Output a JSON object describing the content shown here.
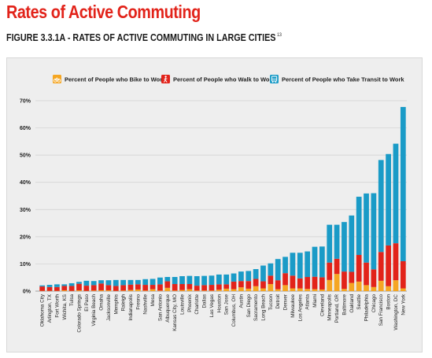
{
  "page": {
    "title": "Rates of Active Commuting",
    "figure_caption": "FIGURE 3.3.1A - RATES OF ACTIVE COMMUTING IN LARGE CITIES",
    "footnote_ref": "13"
  },
  "colors": {
    "bike": "#f5a623",
    "walk": "#e2231a",
    "transit": "#1a9bc7"
  },
  "chart_data": {
    "type": "bar",
    "stacked": true,
    "title": "",
    "xlabel": "",
    "ylabel": "",
    "ylim": [
      0,
      70
    ],
    "yticks": [
      "0%",
      "10%",
      "20%",
      "30%",
      "40%",
      "50%",
      "60%",
      "70%"
    ],
    "grid": true,
    "legend_position": "top",
    "categories": [
      "Oklahoma City",
      "Arlington, TX",
      "Fort Worth",
      "Wichita, KS",
      "Tulsa",
      "Colorado Springs",
      "El Paso",
      "Virginia Beach",
      "Omaha",
      "Jacksonville",
      "Memphis",
      "Raleigh",
      "Indianapolis",
      "Fresno",
      "Nashville",
      "Mesa",
      "San Antonio",
      "Albuquerque",
      "Kansas City, MO",
      "Louisville",
      "Phoenix",
      "Charlotte",
      "Dallas",
      "Las Vegas",
      "Houston",
      "San Jose",
      "Columbus, OH",
      "Austin",
      "San Diego",
      "Sacramento",
      "Long Beach",
      "Tucson",
      "Detroit",
      "Denver",
      "Milwaukee",
      "Los Angeles",
      "Atlanta",
      "Miami",
      "Cleveland",
      "Minneapolis",
      "Portland, OR",
      "Baltimore",
      "Oakland",
      "Seattle",
      "Philadelphia",
      "Chicago",
      "San Francisco",
      "Boston",
      "Washington, DC",
      "New York"
    ],
    "series": [
      {
        "name": "Percent of People who Bike to Work",
        "values": [
          0.1,
          0.1,
          0.1,
          0.3,
          0.1,
          0.3,
          0.1,
          0.2,
          0.3,
          0.3,
          0.1,
          0.2,
          0.4,
          0.6,
          0.2,
          0.7,
          0.2,
          1.2,
          0.2,
          0.4,
          0.7,
          0.2,
          0.2,
          0.2,
          0.5,
          0.9,
          0.7,
          1.4,
          0.9,
          1.8,
          1.0,
          2.6,
          0.7,
          2.2,
          1.0,
          1.0,
          0.8,
          0.7,
          0.6,
          4.1,
          6.3,
          0.8,
          3.0,
          3.5,
          2.2,
          1.5,
          3.8,
          1.8,
          4.0,
          1.0
        ]
      },
      {
        "name": "Percent of People who Walk to Work",
        "values": [
          1.6,
          1.4,
          1.4,
          1.6,
          1.8,
          2.4,
          1.9,
          2.0,
          2.5,
          1.9,
          1.8,
          2.0,
          2.0,
          1.9,
          2.1,
          1.6,
          2.3,
          2.4,
          2.4,
          2.2,
          1.9,
          1.8,
          2.0,
          2.1,
          2.0,
          1.6,
          2.8,
          2.3,
          2.8,
          2.7,
          2.6,
          3.1,
          3.3,
          4.4,
          4.7,
          3.7,
          4.4,
          4.6,
          4.5,
          6.4,
          5.6,
          6.4,
          4.1,
          9.8,
          8.3,
          6.5,
          10.6,
          15.0,
          13.6,
          10.0
        ]
      },
      {
        "name": "Percent of People who Take Transit to Work",
        "values": [
          0.4,
          0.8,
          1.0,
          0.6,
          1.0,
          0.7,
          1.8,
          1.5,
          1.2,
          1.8,
          2.2,
          1.9,
          1.7,
          1.6,
          2.1,
          2.2,
          2.5,
          1.6,
          2.6,
          2.9,
          3.0,
          3.5,
          3.4,
          3.4,
          3.6,
          3.6,
          3.0,
          3.5,
          3.7,
          3.6,
          5.8,
          4.5,
          7.8,
          6.0,
          8.4,
          9.4,
          9.4,
          11.0,
          11.3,
          13.9,
          12.5,
          18.2,
          20.7,
          21.4,
          25.4,
          28.0,
          33.8,
          33.6,
          36.6,
          56.7
        ]
      }
    ]
  }
}
